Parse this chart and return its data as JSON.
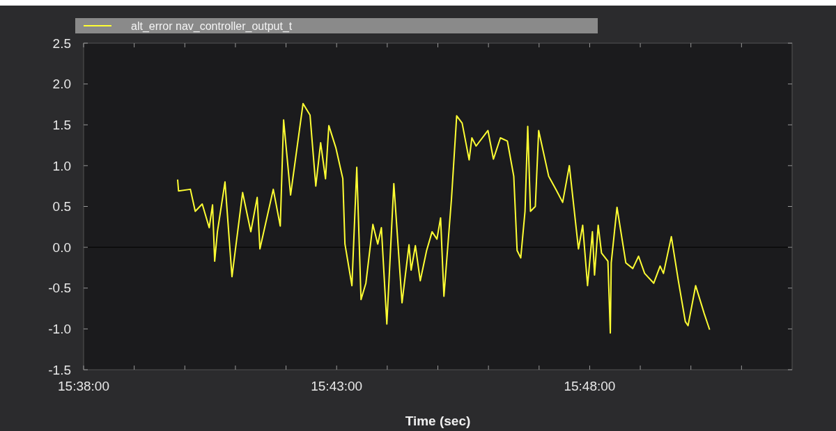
{
  "chart_data": {
    "type": "line",
    "xlabel": "Time (sec)",
    "xlim": [
      15.633333,
      15.866667
    ],
    "xticks": [
      {
        "value": 15.633333,
        "label": "15:38:00"
      },
      {
        "value": 15.65,
        "label": null
      },
      {
        "value": 15.666667,
        "label": null
      },
      {
        "value": 15.683333,
        "label": null
      },
      {
        "value": 15.7,
        "label": null
      },
      {
        "value": 15.716667,
        "label": "15:43:00"
      },
      {
        "value": 15.733333,
        "label": null
      },
      {
        "value": 15.75,
        "label": null
      },
      {
        "value": 15.766667,
        "label": null
      },
      {
        "value": 15.783333,
        "label": null
      },
      {
        "value": 15.8,
        "label": "15:48:00"
      },
      {
        "value": 15.816667,
        "label": null
      },
      {
        "value": 15.833333,
        "label": null
      },
      {
        "value": 15.85,
        "label": null
      }
    ],
    "ylim": [
      -1.5,
      2.5
    ],
    "yticks": [
      -1.5,
      {
        "value": -1,
        "label": "-1.0"
      },
      -0.5,
      {
        "value": 0,
        "label": "0.0"
      },
      0.5,
      {
        "value": 1,
        "label": "1.0"
      },
      1.5,
      {
        "value": 2,
        "label": "2.0"
      },
      2.5
    ],
    "grid": false,
    "legend": "top left",
    "marker": "none",
    "line_style": "solid",
    "ref_lines": [
      {
        "axis": "y",
        "value": 0,
        "color": "#000000"
      }
    ],
    "series": [
      {
        "name": "alt_error nav_controller_output_t",
        "color": "#ffff33",
        "x": [
          15.6643,
          15.6646,
          15.6685,
          15.6701,
          15.6724,
          15.6747,
          15.6758,
          15.6765,
          15.6774,
          15.6799,
          15.6822,
          15.6857,
          15.6884,
          15.6905,
          15.6914,
          15.6958,
          15.6981,
          15.6992,
          15.7015,
          15.7056,
          15.7079,
          15.7098,
          15.7114,
          15.713,
          15.7141,
          15.7164,
          15.7187,
          15.7194,
          15.7217,
          15.7233,
          15.7247,
          15.7263,
          15.7286,
          15.7302,
          15.7314,
          15.7332,
          15.7355,
          15.7382,
          15.7405,
          15.7412,
          15.7426,
          15.7442,
          15.7463,
          15.7481,
          15.7497,
          15.7509,
          15.752,
          15.7545,
          15.7562,
          15.758,
          15.7603,
          15.7612,
          15.7626,
          15.7665,
          15.7683,
          15.7706,
          15.7729,
          15.775,
          15.7761,
          15.7773,
          15.7787,
          15.7796,
          15.7805,
          15.7821,
          15.7832,
          15.7865,
          15.789,
          15.7911,
          15.7933,
          15.7963,
          15.7977,
          15.7993,
          15.8009,
          15.8016,
          15.8028,
          15.8039,
          15.806,
          15.8068,
          15.8071,
          15.809,
          15.8119,
          15.8142,
          15.8161,
          15.8181,
          15.8211,
          15.8232,
          15.8243,
          15.8269,
          15.8292,
          15.8315,
          15.8324,
          15.8349,
          15.8377,
          15.8395
        ],
        "values": [
          0.83,
          0.69,
          0.71,
          0.44,
          0.53,
          0.24,
          0.52,
          -0.17,
          0.19,
          0.8,
          -0.36,
          0.67,
          0.19,
          0.61,
          -0.02,
          0.71,
          0.26,
          1.56,
          0.64,
          1.76,
          1.62,
          0.75,
          1.28,
          0.84,
          1.49,
          1.22,
          0.84,
          0.04,
          -0.47,
          0.98,
          -0.64,
          -0.44,
          0.28,
          0.04,
          0.24,
          -0.94,
          0.78,
          -0.68,
          0.03,
          -0.28,
          0.02,
          -0.41,
          -0.04,
          0.19,
          0.1,
          0.36,
          -0.6,
          0.6,
          1.61,
          1.52,
          1.07,
          1.34,
          1.24,
          1.43,
          1.08,
          1.34,
          1.3,
          0.87,
          -0.04,
          -0.13,
          0.44,
          1.48,
          0.44,
          0.5,
          1.43,
          0.87,
          0.7,
          0.55,
          1.0,
          -0.02,
          0.27,
          -0.47,
          0.19,
          -0.34,
          0.27,
          -0.07,
          -0.17,
          -1.05,
          -0.19,
          0.49,
          -0.19,
          -0.26,
          -0.11,
          -0.32,
          -0.44,
          -0.23,
          -0.32,
          0.13,
          -0.41,
          -0.91,
          -0.96,
          -0.47,
          -0.81,
          -1.01
        ]
      }
    ]
  }
}
